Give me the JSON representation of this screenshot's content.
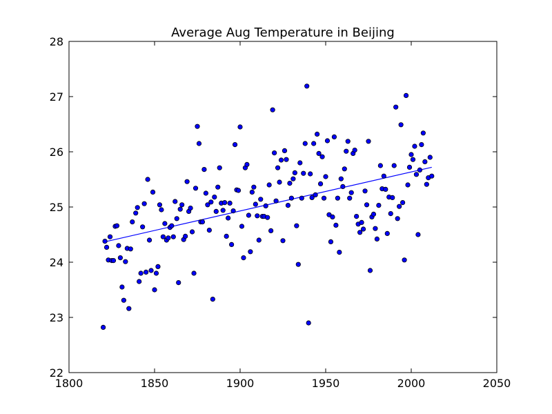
{
  "chart_data": {
    "type": "scatter",
    "title": "Average Aug Temperature in Beijing",
    "xlabel": "",
    "ylabel": "",
    "xlim": [
      1800,
      2050
    ],
    "ylim": [
      22,
      28
    ],
    "x_ticks": [
      1800,
      1850,
      1900,
      1950,
      2000,
      2050
    ],
    "y_ticks": [
      22,
      23,
      24,
      25,
      26,
      27,
      28
    ],
    "grid": false,
    "legend": "none",
    "point_color": "#0000ff",
    "line_color": "#0000ff",
    "trendline": {
      "x": [
        1821,
        2012
      ],
      "y": [
        24.37,
        25.72
      ]
    },
    "points": [
      [
        1820,
        22.82
      ],
      [
        1821,
        24.38
      ],
      [
        1822,
        24.27
      ],
      [
        1823,
        24.04
      ],
      [
        1824,
        24.46
      ],
      [
        1825,
        24.03
      ],
      [
        1826,
        24.03
      ],
      [
        1827,
        24.65
      ],
      [
        1828,
        24.66
      ],
      [
        1829,
        24.3
      ],
      [
        1830,
        24.08
      ],
      [
        1831,
        23.55
      ],
      [
        1832,
        23.31
      ],
      [
        1833,
        24.01
      ],
      [
        1834,
        24.25
      ],
      [
        1835,
        23.16
      ],
      [
        1836,
        24.24
      ],
      [
        1837,
        24.73
      ],
      [
        1839,
        24.89
      ],
      [
        1840,
        24.99
      ],
      [
        1841,
        23.65
      ],
      [
        1842,
        23.8
      ],
      [
        1843,
        24.64
      ],
      [
        1844,
        25.06
      ],
      [
        1845,
        23.82
      ],
      [
        1846,
        25.5
      ],
      [
        1847,
        24.4
      ],
      [
        1848,
        23.85
      ],
      [
        1849,
        25.27
      ],
      [
        1850,
        23.5
      ],
      [
        1851,
        23.8
      ],
      [
        1852,
        23.92
      ],
      [
        1853,
        25.04
      ],
      [
        1854,
        24.95
      ],
      [
        1855,
        24.46
      ],
      [
        1856,
        24.7
      ],
      [
        1857,
        24.4
      ],
      [
        1858,
        24.44
      ],
      [
        1859,
        24.63
      ],
      [
        1860,
        24.66
      ],
      [
        1861,
        24.46
      ],
      [
        1862,
        25.1
      ],
      [
        1863,
        24.79
      ],
      [
        1864,
        23.63
      ],
      [
        1865,
        24.96
      ],
      [
        1866,
        25.04
      ],
      [
        1867,
        24.41
      ],
      [
        1868,
        24.47
      ],
      [
        1869,
        25.46
      ],
      [
        1870,
        24.92
      ],
      [
        1871,
        24.98
      ],
      [
        1872,
        24.55
      ],
      [
        1873,
        23.8
      ],
      [
        1874,
        25.34
      ],
      [
        1875,
        26.46
      ],
      [
        1876,
        26.15
      ],
      [
        1877,
        24.73
      ],
      [
        1878,
        24.73
      ],
      [
        1879,
        25.68
      ],
      [
        1880,
        25.25
      ],
      [
        1881,
        25.04
      ],
      [
        1882,
        24.58
      ],
      [
        1883,
        25.09
      ],
      [
        1884,
        23.33
      ],
      [
        1885,
        25.18
      ],
      [
        1886,
        24.92
      ],
      [
        1887,
        25.36
      ],
      [
        1888,
        25.71
      ],
      [
        1889,
        25.07
      ],
      [
        1890,
        24.94
      ],
      [
        1891,
        25.08
      ],
      [
        1892,
        24.47
      ],
      [
        1893,
        24.8
      ],
      [
        1894,
        25.07
      ],
      [
        1895,
        24.32
      ],
      [
        1896,
        24.93
      ],
      [
        1897,
        26.13
      ],
      [
        1898,
        25.31
      ],
      [
        1899,
        25.3
      ],
      [
        1900,
        26.45
      ],
      [
        1901,
        24.65
      ],
      [
        1902,
        24.08
      ],
      [
        1903,
        25.71
      ],
      [
        1904,
        25.77
      ],
      [
        1905,
        24.85
      ],
      [
        1906,
        24.19
      ],
      [
        1907,
        25.27
      ],
      [
        1908,
        25.36
      ],
      [
        1909,
        25.05
      ],
      [
        1910,
        24.84
      ],
      [
        1911,
        24.4
      ],
      [
        1912,
        25.14
      ],
      [
        1913,
        24.83
      ],
      [
        1914,
        24.83
      ],
      [
        1915,
        25.02
      ],
      [
        1916,
        24.81
      ],
      [
        1917,
        25.4
      ],
      [
        1918,
        24.57
      ],
      [
        1919,
        26.76
      ],
      [
        1920,
        25.98
      ],
      [
        1921,
        25.11
      ],
      [
        1922,
        25.71
      ],
      [
        1923,
        25.45
      ],
      [
        1924,
        25.85
      ],
      [
        1925,
        24.39
      ],
      [
        1926,
        26.02
      ],
      [
        1927,
        25.86
      ],
      [
        1928,
        25.03
      ],
      [
        1929,
        25.43
      ],
      [
        1930,
        25.16
      ],
      [
        1931,
        25.51
      ],
      [
        1932,
        25.62
      ],
      [
        1933,
        24.66
      ],
      [
        1934,
        23.96
      ],
      [
        1935,
        25.8
      ],
      [
        1936,
        25.16
      ],
      [
        1937,
        25.61
      ],
      [
        1938,
        26.15
      ],
      [
        1939,
        27.19
      ],
      [
        1940,
        22.9
      ],
      [
        1941,
        25.6
      ],
      [
        1942,
        25.17
      ],
      [
        1943,
        26.15
      ],
      [
        1944,
        25.22
      ],
      [
        1945,
        26.32
      ],
      [
        1946,
        25.97
      ],
      [
        1947,
        25.42
      ],
      [
        1948,
        25.91
      ],
      [
        1949,
        25.16
      ],
      [
        1950,
        25.55
      ],
      [
        1951,
        26.2
      ],
      [
        1952,
        24.86
      ],
      [
        1953,
        24.37
      ],
      [
        1954,
        24.82
      ],
      [
        1955,
        26.27
      ],
      [
        1956,
        24.67
      ],
      [
        1957,
        25.16
      ],
      [
        1958,
        24.18
      ],
      [
        1959,
        25.51
      ],
      [
        1960,
        25.37
      ],
      [
        1961,
        25.69
      ],
      [
        1962,
        26.01
      ],
      [
        1963,
        26.19
      ],
      [
        1964,
        25.16
      ],
      [
        1965,
        25.26
      ],
      [
        1966,
        25.97
      ],
      [
        1967,
        26.03
      ],
      [
        1968,
        24.83
      ],
      [
        1969,
        24.69
      ],
      [
        1970,
        24.54
      ],
      [
        1971,
        24.72
      ],
      [
        1972,
        24.6
      ],
      [
        1973,
        25.29
      ],
      [
        1974,
        25.04
      ],
      [
        1975,
        26.19
      ],
      [
        1976,
        23.85
      ],
      [
        1977,
        24.82
      ],
      [
        1978,
        24.87
      ],
      [
        1979,
        24.61
      ],
      [
        1980,
        24.42
      ],
      [
        1981,
        25.03
      ],
      [
        1982,
        25.75
      ],
      [
        1983,
        25.33
      ],
      [
        1984,
        25.56
      ],
      [
        1985,
        25.32
      ],
      [
        1986,
        24.52
      ],
      [
        1987,
        25.18
      ],
      [
        1988,
        24.88
      ],
      [
        1989,
        25.17
      ],
      [
        1990,
        25.75
      ],
      [
        1991,
        26.81
      ],
      [
        1992,
        24.79
      ],
      [
        1993,
        25.01
      ],
      [
        1994,
        26.49
      ],
      [
        1995,
        25.08
      ],
      [
        1996,
        24.04
      ],
      [
        1997,
        27.02
      ],
      [
        1998,
        25.4
      ],
      [
        1999,
        25.72
      ],
      [
        2000,
        25.95
      ],
      [
        2001,
        25.86
      ],
      [
        2002,
        26.1
      ],
      [
        2003,
        25.59
      ],
      [
        2004,
        24.5
      ],
      [
        2005,
        25.67
      ],
      [
        2006,
        26.13
      ],
      [
        2007,
        26.34
      ],
      [
        2008,
        25.82
      ],
      [
        2009,
        25.41
      ],
      [
        2010,
        25.53
      ],
      [
        2011,
        25.9
      ],
      [
        2012,
        25.56
      ]
    ]
  }
}
